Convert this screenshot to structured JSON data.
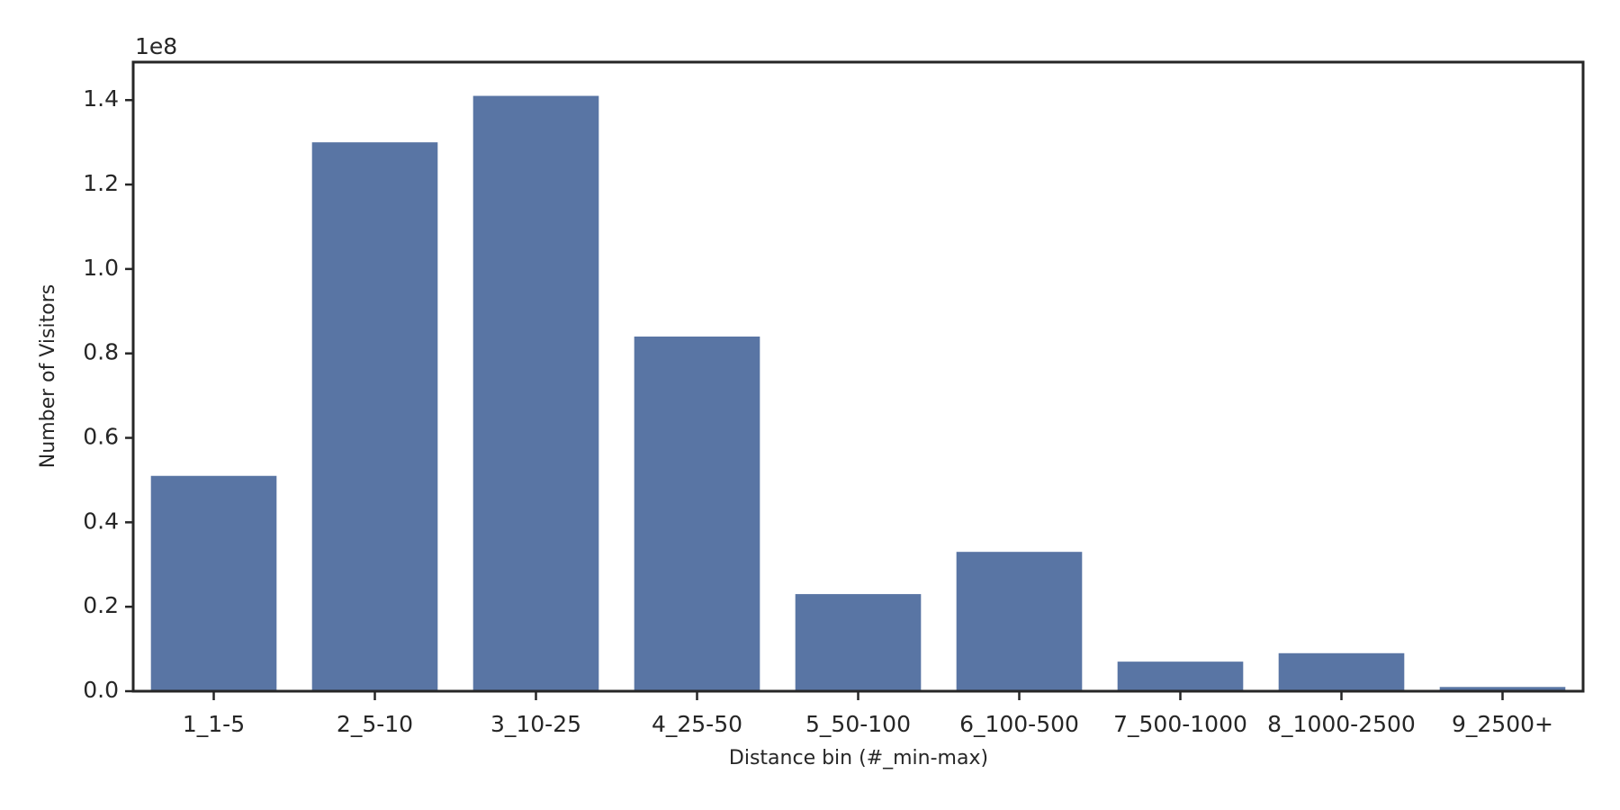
{
  "chart_data": {
    "type": "bar",
    "x_label": "Distance bin (#_min-max)",
    "y_label": "Number of Visitors",
    "y_offset_label": "1e8",
    "categories": [
      "1_1-5",
      "2_5-10",
      "3_10-25",
      "4_25-50",
      "5_50-100",
      "6_100-500",
      "7_500-1000",
      "8_1000-2500",
      "9_2500+"
    ],
    "values": [
      0.51,
      1.3,
      1.41,
      0.84,
      0.23,
      0.33,
      0.07,
      0.09,
      0.01
    ],
    "color": "#5975a4",
    "ylim": [
      0,
      1.49
    ],
    "yticks": [
      {
        "value": 0,
        "label": "0.0"
      },
      0.2,
      0.4,
      0.6,
      0.8,
      {
        "value": 1,
        "label": "1.0"
      },
      1.2,
      1.4
    ]
  }
}
